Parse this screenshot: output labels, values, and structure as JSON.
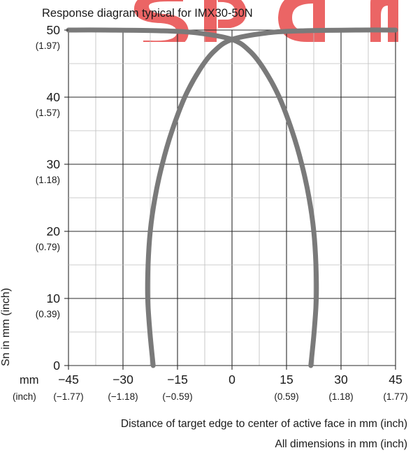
{
  "chart_data": {
    "type": "line",
    "title": "Response diagram typical for IMX30-50N",
    "ylabel": "Sn in mm (inch)",
    "xlabel": "Distance of target edge to center of active face in mm (inch)",
    "unit_label_mm": "mm",
    "unit_label_inch": "(inch)",
    "xlim": [
      -45,
      45
    ],
    "ylim": [
      0,
      50
    ],
    "grid": true,
    "x_ticks": [
      {
        "value": -45,
        "mm": "−45",
        "inch": "(−1.77)"
      },
      {
        "value": -30,
        "mm": "−30",
        "inch": "(−1.18)"
      },
      {
        "value": -15,
        "mm": "−15",
        "inch": "(−0.59)"
      },
      {
        "value": 0,
        "mm": "0",
        "inch": ""
      },
      {
        "value": 15,
        "mm": "15",
        "inch": "(0.59)"
      },
      {
        "value": 30,
        "mm": "30",
        "inch": "(1.18)"
      },
      {
        "value": 45,
        "mm": "45",
        "inch": "(1.77)"
      }
    ],
    "y_ticks": [
      {
        "value": 0,
        "mm": "0",
        "inch": ""
      },
      {
        "value": 10,
        "mm": "10",
        "inch": "(0.39)"
      },
      {
        "value": 20,
        "mm": "20",
        "inch": "(0.79)"
      },
      {
        "value": 30,
        "mm": "30",
        "inch": "(1.18)"
      },
      {
        "value": 40,
        "mm": "40",
        "inch": "(1.57)"
      },
      {
        "value": 50,
        "mm": "50",
        "inch": "(1.97)"
      }
    ],
    "series": [
      {
        "color": "#7a7a7a",
        "points": [
          [
            -21.7,
            0
          ],
          [
            -22.6,
            5
          ],
          [
            -23.2,
            10
          ],
          [
            -23.1,
            15
          ],
          [
            -22.5,
            20
          ],
          [
            -21.2,
            25
          ],
          [
            -19.2,
            30
          ],
          [
            -16.5,
            35
          ],
          [
            -13.0,
            40
          ],
          [
            -9.0,
            44
          ],
          [
            -5.0,
            46.8
          ],
          [
            0,
            48.6
          ],
          [
            10,
            49.6
          ],
          [
            20,
            49.9
          ],
          [
            35,
            50
          ],
          [
            45,
            50
          ]
        ]
      },
      {
        "color": "#7a7a7a",
        "points": [
          [
            21.7,
            0
          ],
          [
            22.6,
            5
          ],
          [
            23.2,
            10
          ],
          [
            23.1,
            15
          ],
          [
            22.5,
            20
          ],
          [
            21.2,
            25
          ],
          [
            19.2,
            30
          ],
          [
            16.5,
            35
          ],
          [
            13.0,
            40
          ],
          [
            9.0,
            44
          ],
          [
            5.0,
            46.8
          ],
          [
            0,
            48.6
          ],
          [
            -10,
            49.6
          ],
          [
            -20,
            49.9
          ],
          [
            -35,
            50
          ],
          [
            -45,
            50
          ]
        ]
      }
    ]
  },
  "footer": {
    "dims_note": "All dimensions in mm (inch)"
  },
  "watermark": {
    "color": "#e84a4a"
  }
}
